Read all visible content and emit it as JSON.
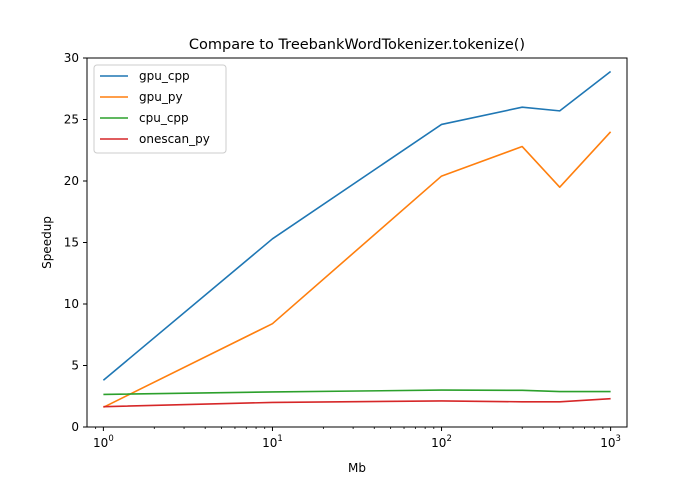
{
  "chart_data": {
    "type": "line",
    "title": "Compare to TreebankWordTokenizer.tokenize()",
    "xlabel": "Mb",
    "ylabel": "Speedup",
    "xscale": "log",
    "xlim": [
      0.8,
      1250
    ],
    "ylim": [
      0,
      30
    ],
    "yticks": [
      "0",
      "5",
      "10",
      "15",
      "20",
      "25",
      "30"
    ],
    "xticks": [
      {
        "base": "10",
        "exp": "0",
        "value": 1
      },
      {
        "base": "10",
        "exp": "1",
        "value": 10
      },
      {
        "base": "10",
        "exp": "2",
        "value": 100
      },
      {
        "base": "10",
        "exp": "3",
        "value": 1000
      }
    ],
    "grid": false,
    "legend_position": "top-left",
    "x": [
      1,
      10,
      100,
      300,
      500,
      1000
    ],
    "series": [
      {
        "name": "gpu_cpp",
        "color": "#1f77b4",
        "values": [
          3.8,
          15.3,
          24.6,
          26.0,
          25.7,
          28.9
        ]
      },
      {
        "name": "gpu_py",
        "color": "#ff7f0e",
        "values": [
          1.6,
          8.4,
          20.4,
          22.8,
          19.5,
          24.0
        ]
      },
      {
        "name": "cpu_cpp",
        "color": "#2ca02c",
        "values": [
          2.65,
          2.85,
          3.0,
          2.98,
          2.88,
          2.88
        ]
      },
      {
        "name": "onescan_py",
        "color": "#d62728",
        "values": [
          1.65,
          2.0,
          2.12,
          2.05,
          2.05,
          2.3
        ]
      }
    ]
  }
}
